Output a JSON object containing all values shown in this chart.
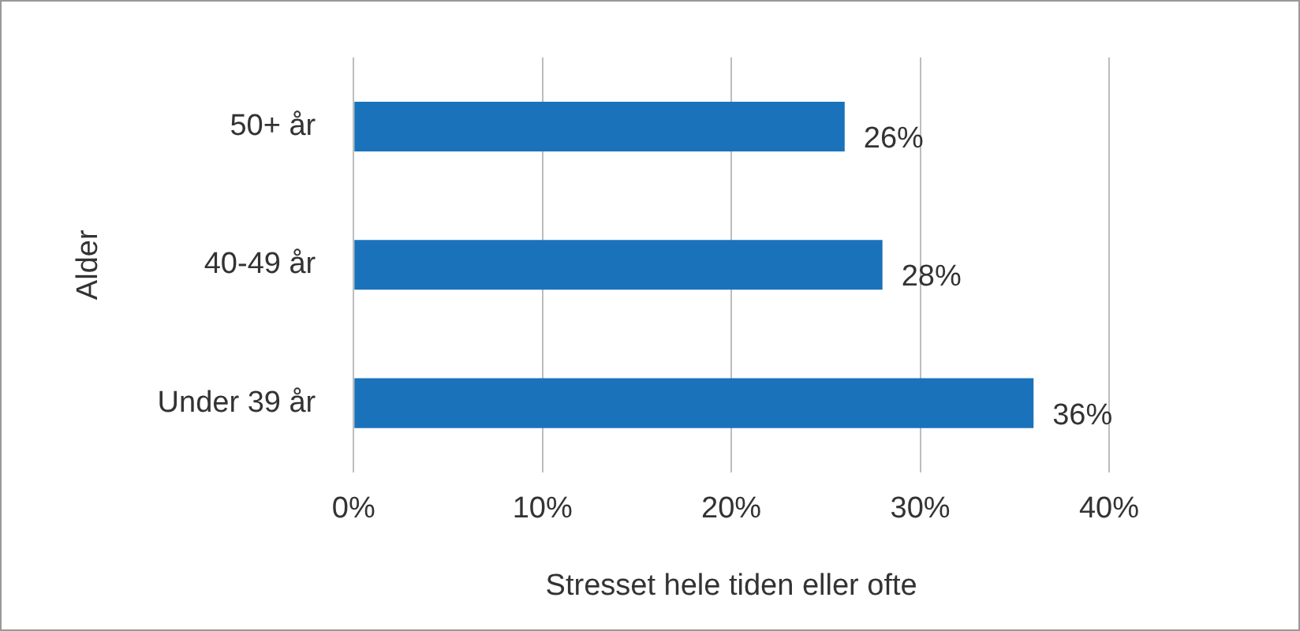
{
  "chart_data": {
    "type": "bar",
    "orientation": "horizontal",
    "categories": [
      "50+ år",
      "40-49 år",
      "Under 39 år"
    ],
    "values": [
      26,
      28,
      36
    ],
    "color": "#1a72bb",
    "value_labels": [
      "26%",
      "28%",
      "36%"
    ],
    "xlim": [
      0,
      40
    ],
    "xticks": [
      {
        "value": 0,
        "label": "0%"
      },
      {
        "value": 10,
        "label": "10%"
      },
      {
        "value": 20,
        "label": "20%"
      },
      {
        "value": 30,
        "label": "30%"
      },
      {
        "value": 40,
        "label": "40%"
      }
    ],
    "xlabel": "Stresset hele tiden eller ofte",
    "ylabel": "Alder",
    "grid": "x",
    "legend": false
  }
}
